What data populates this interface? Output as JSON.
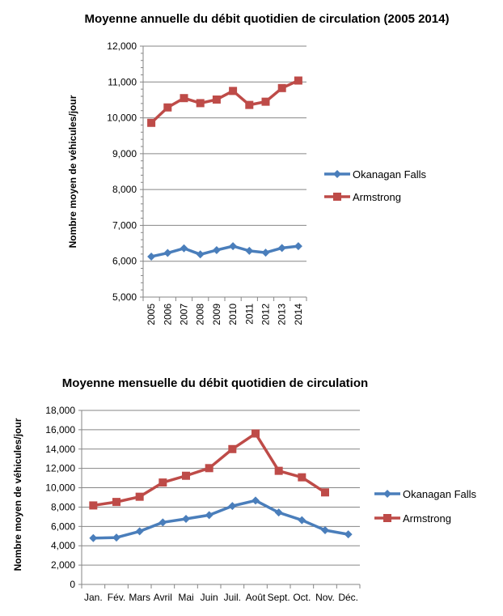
{
  "colors": {
    "okanagan": "#4a7ebb",
    "armstrong": "#be4b48",
    "grid": "#868686"
  },
  "chart_data": [
    {
      "type": "line",
      "title": "Moyenne annuelle du débit quotidien de circulation (2005 2014)",
      "xlabel": "",
      "ylabel": "Nombre moyen de véhicules/jour",
      "ylim": [
        5000,
        12000
      ],
      "ystep": 1000,
      "ytick_labels": [
        "5,000",
        "6,000",
        "7,000",
        "8,000",
        "9,000",
        "10,000",
        "11,000",
        "12,000"
      ],
      "categories": [
        "2005",
        "2006",
        "2007",
        "2008",
        "2009",
        "2010",
        "2011",
        "2012",
        "2013",
        "2014"
      ],
      "grid": true,
      "legend_position": "right",
      "series": [
        {
          "name": "Okanagan Falls",
          "marker": "diamond",
          "values": [
            6130,
            6230,
            6360,
            6190,
            6310,
            6420,
            6290,
            6240,
            6370,
            6420
          ]
        },
        {
          "name": "Armstrong",
          "marker": "square",
          "values": [
            9860,
            10290,
            10550,
            10410,
            10510,
            10750,
            10360,
            10450,
            10830,
            11040
          ]
        }
      ]
    },
    {
      "type": "line",
      "title": "Moyenne mensuelle du débit quotidien de circulation",
      "xlabel": "",
      "ylabel": "Nombre moyen de véhicules/jour",
      "ylim": [
        0,
        18000
      ],
      "ystep": 2000,
      "ytick_labels": [
        "0",
        "2,000",
        "4,000",
        "6,000",
        "8,000",
        "10,000",
        "12,000",
        "14,000",
        "16,000",
        "18,000"
      ],
      "categories": [
        "Jan.",
        "Fév.",
        "Mars",
        "Avril",
        "Mai",
        "Juin",
        "Juil.",
        "Août",
        "Sept.",
        "Oct.",
        "Nov.",
        "Déc."
      ],
      "grid": true,
      "legend_position": "right",
      "series": [
        {
          "name": "Okanagan Falls",
          "marker": "diamond",
          "values": [
            4790,
            4850,
            5490,
            6420,
            6780,
            7170,
            8110,
            8680,
            7440,
            6650,
            5610,
            5180
          ]
        },
        {
          "name": "Armstrong",
          "marker": "square",
          "values": [
            8170,
            8530,
            9070,
            10540,
            11240,
            12030,
            14000,
            15610,
            11750,
            11080,
            9520,
            null
          ]
        }
      ]
    }
  ]
}
